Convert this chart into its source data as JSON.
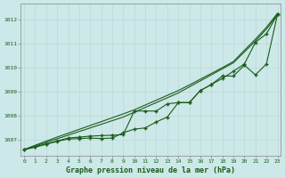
{
  "title": "Graphe pression niveau de la mer (hPa)",
  "bg_color": "#cce8e8",
  "grid_color": "#b8d8d8",
  "line_color": "#1a5c1a",
  "xlim": [
    -0.3,
    23.3
  ],
  "ylim": [
    1006.35,
    1012.65
  ],
  "xticks": [
    0,
    1,
    2,
    3,
    4,
    5,
    6,
    7,
    8,
    9,
    10,
    11,
    12,
    13,
    14,
    15,
    16,
    17,
    18,
    19,
    20,
    21,
    22,
    23
  ],
  "yticks": [
    1007,
    1008,
    1009,
    1010,
    1011,
    1012
  ],
  "smooth1": [
    1006.6,
    1006.75,
    1006.9,
    1007.05,
    1007.2,
    1007.35,
    1007.5,
    1007.65,
    1007.8,
    1007.95,
    1008.15,
    1008.35,
    1008.55,
    1008.75,
    1008.95,
    1009.2,
    1009.45,
    1009.7,
    1009.95,
    1010.2,
    1010.65,
    1011.1,
    1011.6,
    1012.2
  ],
  "smooth2": [
    1006.6,
    1006.78,
    1006.95,
    1007.12,
    1007.28,
    1007.44,
    1007.6,
    1007.76,
    1007.92,
    1008.08,
    1008.25,
    1008.45,
    1008.65,
    1008.85,
    1009.05,
    1009.28,
    1009.52,
    1009.76,
    1010.0,
    1010.25,
    1010.72,
    1011.18,
    1011.67,
    1012.25
  ],
  "marker1": [
    1006.6,
    1006.72,
    1006.84,
    1006.96,
    1007.08,
    1007.12,
    1007.16,
    1007.18,
    1007.2,
    1007.22,
    1008.2,
    1008.2,
    1008.2,
    1008.5,
    1008.55,
    1008.55,
    1009.05,
    1009.3,
    1009.55,
    1009.85,
    1010.15,
    1011.05,
    1011.4,
    1012.2
  ],
  "marker2": [
    1006.6,
    1006.7,
    1006.82,
    1006.94,
    1007.04,
    1007.06,
    1007.08,
    1007.06,
    1007.08,
    1007.3,
    1007.45,
    1007.5,
    1007.75,
    1007.95,
    1008.55,
    1008.55,
    1009.05,
    1009.3,
    1009.65,
    1009.65,
    1010.1,
    1009.7,
    1010.15,
    1012.2
  ]
}
